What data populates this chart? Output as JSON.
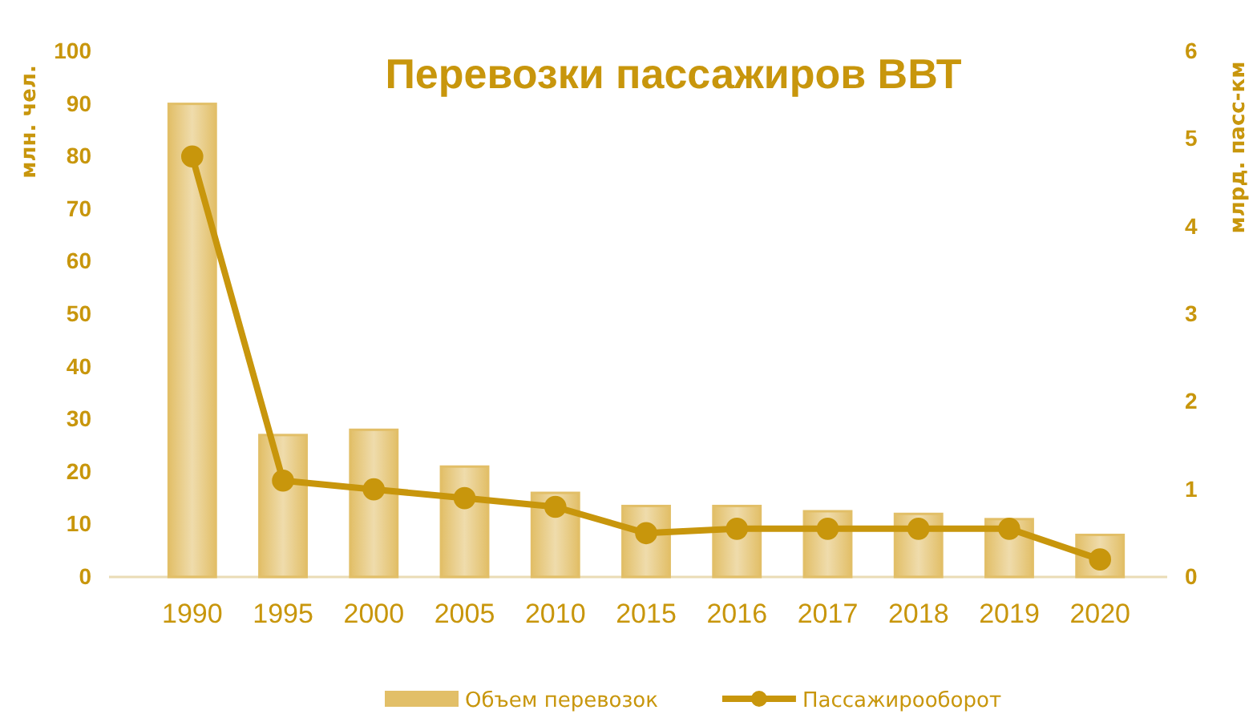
{
  "chart_data": {
    "type": "bar",
    "title": "Перевозки пассажиров ВВТ",
    "ylabel": "млн. чел.",
    "y2label": "млрд. пасс-км",
    "categories": [
      "1990",
      "1995",
      "2000",
      "2005",
      "2010",
      "2015",
      "2016",
      "2017",
      "2018",
      "2019",
      "2020"
    ],
    "series": [
      {
        "name": "Объем перевозок",
        "color": "#e2bf68",
        "values": [
          90,
          27,
          28,
          21,
          16,
          13.5,
          13.5,
          12.5,
          12,
          11,
          8
        ]
      },
      {
        "name": "Пассажирооборот",
        "type": "line",
        "axis": "y2",
        "color": "#c8960c",
        "values": [
          4.8,
          1.1,
          1.0,
          0.9,
          0.8,
          0.5,
          0.55,
          0.55,
          0.55,
          0.55,
          0.2
        ]
      }
    ],
    "ylim": [
      0,
      100
    ],
    "yticks": [
      0,
      10,
      20,
      30,
      40,
      50,
      60,
      70,
      80,
      90,
      100
    ],
    "y2lim": [
      0,
      6
    ],
    "y2ticks": [
      0,
      1,
      2,
      3,
      4,
      5,
      6
    ],
    "grid": false,
    "legend": "bottom",
    "marker": "circle",
    "line_style": "solid"
  }
}
